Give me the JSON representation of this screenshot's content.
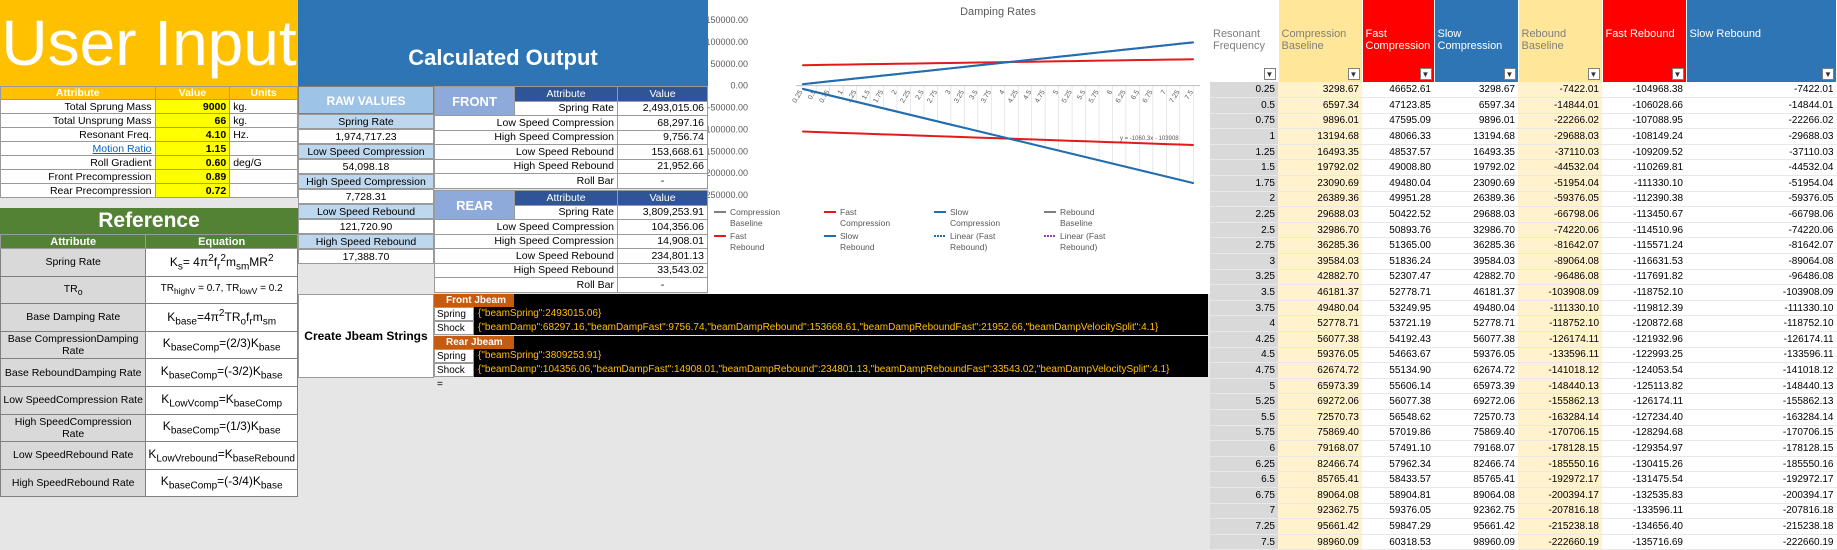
{
  "user_input": {
    "title": "User Input",
    "headers": [
      "Attribute",
      "Value",
      "Units"
    ],
    "rows": [
      {
        "label": "Total Sprung Mass",
        "value": "9000",
        "unit": "kg."
      },
      {
        "label": "Total Unsprung Mass",
        "value": "66",
        "unit": "kg."
      },
      {
        "label": "Resonant Freq.",
        "value": "4.10",
        "unit": "Hz."
      },
      {
        "label": "Motion Ratio",
        "value": "1.15",
        "unit": ""
      },
      {
        "label": "Roll Gradient",
        "value": "0.60",
        "unit": "deg/G"
      },
      {
        "label": "Front Precompression",
        "value": "0.89",
        "unit": ""
      },
      {
        "label": "Rear Precompression",
        "value": "0.72",
        "unit": ""
      }
    ]
  },
  "reference": {
    "title": "Reference",
    "headers": [
      "Attribute",
      "Equation"
    ],
    "rows": [
      {
        "label": "Spring Rate",
        "eq": "Ks= 4π²f²msmMR²"
      },
      {
        "label": "TRo",
        "eq": "TRhighV = 0.7, TRlowV = 0.2"
      },
      {
        "label": "Base Damping Rate",
        "eq": "Kbase=4π²TRof,msm"
      },
      {
        "label": "Base CompressionDamping Rate",
        "eq": "KbaseComp=(2/3)Kbase"
      },
      {
        "label": "Base ReboundDamping Rate",
        "eq": "KbaseComp=(-3/2)Kbase"
      },
      {
        "label": "Low SpeedCompression Rate",
        "eq": "KLowVcomp=KbaseComp"
      },
      {
        "label": "High SpeedCompression Rate",
        "eq": "KbaseComp=(1/3)Kbase"
      },
      {
        "label": "Low SpeedRebound Rate",
        "eq": "KLowVrebound=KbaseRebound"
      },
      {
        "label": "High SpeedRebound Rate",
        "eq": "KbaseComp=(-3/4)Kbase"
      }
    ]
  },
  "calculated": {
    "title": "Calculated Output"
  },
  "raw": {
    "title": "RAW VALUES",
    "items": [
      {
        "label": "Spring Rate",
        "value": "1,974,717.23"
      },
      {
        "label": "Low Speed Compression",
        "value": "54,098.18"
      },
      {
        "label": "High Speed Compression",
        "value": "7,728.31"
      },
      {
        "label": "Low Speed Rebound",
        "value": "121,720.90"
      },
      {
        "label": "High Speed Rebound",
        "value": "17,388.70"
      }
    ]
  },
  "front": {
    "title": "FRONT",
    "headers": [
      "Attribute",
      "Value"
    ],
    "rows": [
      {
        "a": "Spring Rate",
        "v": "2,493,015.06"
      },
      {
        "a": "Low Speed Compression",
        "v": "68,297.16"
      },
      {
        "a": "High Speed Compression",
        "v": "9,756.74"
      },
      {
        "a": "Low Speed Rebound",
        "v": "153,668.61"
      },
      {
        "a": "High Speed Rebound",
        "v": "21,952.66"
      },
      {
        "a": "Roll Bar",
        "v": "-"
      }
    ]
  },
  "rear": {
    "title": "REAR",
    "headers": [
      "Attribute",
      "Value"
    ],
    "rows": [
      {
        "a": "Spring Rate",
        "v": "3,809,253.91"
      },
      {
        "a": "Low Speed Compression",
        "v": "104,356.06"
      },
      {
        "a": "High Speed Compression",
        "v": "14,908.01"
      },
      {
        "a": "Low Speed Rebound",
        "v": "234,801.13"
      },
      {
        "a": "High Speed Rebound",
        "v": "33,543.02"
      },
      {
        "a": "Roll Bar",
        "v": "-"
      }
    ]
  },
  "jbeam": {
    "button": "Create Jbeam Strings",
    "front_title": "Front Jbeam",
    "rear_title": "Rear Jbeam",
    "spring_key": "Spring =",
    "shock_key": "Shock =",
    "front_spring": "{\"beamSpring\":2493015.06}",
    "front_shock": "{\"beamDamp\":68297.16,\"beamDampFast\":9756.74,\"beamDampRebound\":153668.61,\"beamDampReboundFast\":21952.66,\"beamDampVelocitySplit\":4.1}",
    "rear_spring": "{\"beamSpring\":3809253.91}",
    "rear_shock": "{\"beamDamp\":104356.06,\"beamDampFast\":14908.01,\"beamDampRebound\":234801.13,\"beamDampReboundFast\":33543.02,\"beamDampVelocitySplit\":4.1}"
  },
  "chart_data": {
    "type": "line",
    "title": "Damping Rates",
    "ylim": [
      -250000,
      150000
    ],
    "yticks": [
      "150000.00",
      "100000.00",
      "50000.00",
      "0.00",
      "-50000.00",
      "-100000.00",
      "-150000.00",
      "-200000.00",
      "-250000.00"
    ],
    "x": [
      0.25,
      0.5,
      0.75,
      1,
      1.25,
      1.5,
      1.75,
      2,
      2.25,
      2.5,
      2.75,
      3,
      3.25,
      3.5,
      3.75,
      4,
      4.25,
      4.5,
      4.75,
      5,
      5.25,
      5.5,
      5.75,
      6,
      6.25,
      6.5,
      6.75,
      7,
      7.25,
      7.5
    ],
    "xticklabels": [
      "0.25",
      "0.5",
      "0.75",
      "1",
      "1.25",
      "1.5",
      "1.75",
      "2",
      "2.25",
      "2.5",
      "2.75",
      "3",
      "3.25",
      "3.5",
      "3.75",
      "4",
      "4.25",
      "4.5",
      "4.75",
      "5",
      "5.25",
      "5.5",
      "5.75",
      "6",
      "6.25",
      "6.5",
      "6.75",
      "7",
      "7.25",
      "7.5"
    ],
    "series": [
      {
        "name": "Compression Baseline",
        "color": "#7f7f7f",
        "values": [
          3298.67,
          6597.34,
          9896.01,
          13194.68,
          16493.35,
          19792.02,
          23090.69,
          26389.36,
          29688.03,
          32986.7,
          36285.36,
          39584.03,
          42882.7,
          46181.37,
          49480.04,
          52778.71,
          56077.38,
          59376.05,
          62674.72,
          65973.39,
          69272.06,
          72570.73,
          75869.4,
          79168.07,
          82466.74,
          85765.41,
          89064.08,
          92362.75,
          95661.42,
          98960.09
        ]
      },
      {
        "name": "Fast Compression",
        "color": "#e31a1c",
        "values": [
          46652.61,
          47123.85,
          47595.09,
          48066.33,
          48537.57,
          49008.8,
          49480.04,
          49951.28,
          50422.52,
          50893.76,
          51365.0,
          51836.24,
          52307.47,
          52778.71,
          53249.95,
          53721.19,
          54192.43,
          54663.67,
          55134.9,
          55606.14,
          56077.38,
          56548.62,
          57019.86,
          57491.1,
          57962.34,
          58433.57,
          58904.81,
          59376.05,
          59847.29,
          60318.53
        ]
      },
      {
        "name": "Slow Compression",
        "color": "#1f6eb3",
        "values": [
          3298.67,
          6597.34,
          9896.01,
          13194.68,
          16493.35,
          19792.02,
          23090.69,
          26389.36,
          29688.03,
          32986.7,
          36285.36,
          39584.03,
          42882.7,
          46181.37,
          49480.04,
          52778.71,
          56077.38,
          59376.05,
          62674.72,
          65973.39,
          69272.06,
          72570.73,
          75869.4,
          79168.07,
          82466.74,
          85765.41,
          89064.08,
          92362.75,
          95661.42,
          98960.09
        ]
      },
      {
        "name": "Rebound Baseline",
        "color": "#7f7f7f",
        "values": [
          -7422.01,
          -14844.01,
          -22266.02,
          -29688.03,
          -37110.03,
          -44532.04,
          -51954.04,
          -59376.05,
          -66798.06,
          -74220.06,
          -81642.07,
          -89064.08,
          -96486.08,
          -103908.09,
          -111330.1,
          -118752.1,
          -126174.11,
          -133596.11,
          -141018.12,
          -148440.13,
          -155862.13,
          -163284.14,
          -170706.15,
          -178128.15,
          -185550.16,
          -192972.17,
          -200394.17,
          -207816.18,
          -215238.18,
          -222660.19
        ]
      },
      {
        "name": "Fast Rebound",
        "color": "#e31a1c",
        "values": [
          -104968.38,
          -106028.66,
          -107088.95,
          -108149.24,
          -109209.52,
          -110269.81,
          -111330.1,
          -112390.38,
          -113450.67,
          -114510.96,
          -115571.24,
          -116631.53,
          -117691.82,
          -118752.1,
          -119812.39,
          -120872.68,
          -121932.96,
          -122993.25,
          -124053.54,
          -125113.82,
          -126174.11,
          -127234.4,
          -128294.68,
          -129354.97,
          -130415.26,
          -131475.54,
          -132535.83,
          -133596.11,
          -134656.4,
          -135716.69
        ]
      },
      {
        "name": "Slow Rebound",
        "color": "#1f6eb3",
        "values": [
          -7422.01,
          -14844.01,
          -22266.02,
          -29688.03,
          -37110.03,
          -44532.04,
          -51954.04,
          -59376.05,
          -66798.06,
          -74220.06,
          -81642.07,
          -89064.08,
          -96486.08,
          -103908.09,
          -111330.1,
          -118752.1,
          -126174.11,
          -133596.11,
          -141018.12,
          -148440.13,
          -155862.13,
          -163284.14,
          -170706.15,
          -178128.15,
          -185550.16,
          -192972.17,
          -200394.17,
          -207816.18,
          -215238.18,
          -222660.19
        ]
      }
    ],
    "legend": [
      "Compression Baseline",
      "Fast Compression",
      "Slow Compression",
      "Rebound Baseline",
      "Fast Rebound",
      "Slow Rebound",
      "Linear (Fast Rebound)",
      "Linear (Fast Rebound)"
    ],
    "trend_label": "y = -1060.3x - 103908"
  },
  "table": {
    "headers": [
      {
        "label": "Resonant Frequency",
        "color": "#ffffff",
        "text": "#7f7f7f"
      },
      {
        "label": "Compression Baseline",
        "color": "#ffe699",
        "text": "#7f7f7f"
      },
      {
        "label": "Fast Compression",
        "color": "#ff0000",
        "text": "#ffffff"
      },
      {
        "label": "Slow Compression",
        "color": "#2e75b6",
        "text": "#ffffff"
      },
      {
        "label": "Rebound Baseline",
        "color": "#ffe699",
        "text": "#7f7f7f"
      },
      {
        "label": "Fast Rebound",
        "color": "#ff0000",
        "text": "#ffffff"
      },
      {
        "label": "Slow Rebound",
        "color": "#2e75b6",
        "text": "#ffffff"
      }
    ],
    "rows": [
      [
        "0.25",
        "3298.67",
        "46652.61",
        "3298.67",
        "-7422.01",
        "-104968.38",
        "-7422.01"
      ],
      [
        "0.5",
        "6597.34",
        "47123.85",
        "6597.34",
        "-14844.01",
        "-106028.66",
        "-14844.01"
      ],
      [
        "0.75",
        "9896.01",
        "47595.09",
        "9896.01",
        "-22266.02",
        "-107088.95",
        "-22266.02"
      ],
      [
        "1",
        "13194.68",
        "48066.33",
        "13194.68",
        "-29688.03",
        "-108149.24",
        "-29688.03"
      ],
      [
        "1.25",
        "16493.35",
        "48537.57",
        "16493.35",
        "-37110.03",
        "-109209.52",
        "-37110.03"
      ],
      [
        "1.5",
        "19792.02",
        "49008.80",
        "19792.02",
        "-44532.04",
        "-110269.81",
        "-44532.04"
      ],
      [
        "1.75",
        "23090.69",
        "49480.04",
        "23090.69",
        "-51954.04",
        "-111330.10",
        "-51954.04"
      ],
      [
        "2",
        "26389.36",
        "49951.28",
        "26389.36",
        "-59376.05",
        "-112390.38",
        "-59376.05"
      ],
      [
        "2.25",
        "29688.03",
        "50422.52",
        "29688.03",
        "-66798.06",
        "-113450.67",
        "-66798.06"
      ],
      [
        "2.5",
        "32986.70",
        "50893.76",
        "32986.70",
        "-74220.06",
        "-114510.96",
        "-74220.06"
      ],
      [
        "2.75",
        "36285.36",
        "51365.00",
        "36285.36",
        "-81642.07",
        "-115571.24",
        "-81642.07"
      ],
      [
        "3",
        "39584.03",
        "51836.24",
        "39584.03",
        "-89064.08",
        "-116631.53",
        "-89064.08"
      ],
      [
        "3.25",
        "42882.70",
        "52307.47",
        "42882.70",
        "-96486.08",
        "-117691.82",
        "-96486.08"
      ],
      [
        "3.5",
        "46181.37",
        "52778.71",
        "46181.37",
        "-103908.09",
        "-118752.10",
        "-103908.09"
      ],
      [
        "3.75",
        "49480.04",
        "53249.95",
        "49480.04",
        "-111330.10",
        "-119812.39",
        "-111330.10"
      ],
      [
        "4",
        "52778.71",
        "53721.19",
        "52778.71",
        "-118752.10",
        "-120872.68",
        "-118752.10"
      ],
      [
        "4.25",
        "56077.38",
        "54192.43",
        "56077.38",
        "-126174.11",
        "-121932.96",
        "-126174.11"
      ],
      [
        "4.5",
        "59376.05",
        "54663.67",
        "59376.05",
        "-133596.11",
        "-122993.25",
        "-133596.11"
      ],
      [
        "4.75",
        "62674.72",
        "55134.90",
        "62674.72",
        "-141018.12",
        "-124053.54",
        "-141018.12"
      ],
      [
        "5",
        "65973.39",
        "55606.14",
        "65973.39",
        "-148440.13",
        "-125113.82",
        "-148440.13"
      ],
      [
        "5.25",
        "69272.06",
        "56077.38",
        "69272.06",
        "-155862.13",
        "-126174.11",
        "-155862.13"
      ],
      [
        "5.5",
        "72570.73",
        "56548.62",
        "72570.73",
        "-163284.14",
        "-127234.40",
        "-163284.14"
      ],
      [
        "5.75",
        "75869.40",
        "57019.86",
        "75869.40",
        "-170706.15",
        "-128294.68",
        "-170706.15"
      ],
      [
        "6",
        "79168.07",
        "57491.10",
        "79168.07",
        "-178128.15",
        "-129354.97",
        "-178128.15"
      ],
      [
        "6.25",
        "82466.74",
        "57962.34",
        "82466.74",
        "-185550.16",
        "-130415.26",
        "-185550.16"
      ],
      [
        "6.5",
        "85765.41",
        "58433.57",
        "85765.41",
        "-192972.17",
        "-131475.54",
        "-192972.17"
      ],
      [
        "6.75",
        "89064.08",
        "58904.81",
        "89064.08",
        "-200394.17",
        "-132535.83",
        "-200394.17"
      ],
      [
        "7",
        "92362.75",
        "59376.05",
        "92362.75",
        "-207816.18",
        "-133596.11",
        "-207816.18"
      ],
      [
        "7.25",
        "95661.42",
        "59847.29",
        "95661.42",
        "-215238.18",
        "-134656.40",
        "-215238.18"
      ],
      [
        "7.5",
        "98960.09",
        "60318.53",
        "98960.09",
        "-222660.19",
        "-135716.69",
        "-222660.19"
      ]
    ]
  }
}
